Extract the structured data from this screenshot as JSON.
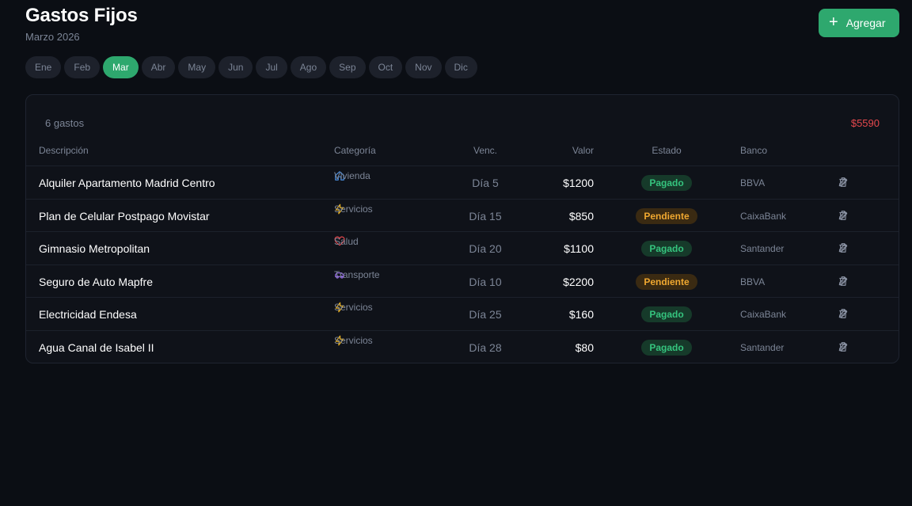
{
  "header": {
    "title": "Gastos Fijos",
    "subtitle": "Marzo 2026",
    "add_label": "Agregar",
    "add_icon": "+"
  },
  "months": [
    {
      "label": "Ene",
      "active": false
    },
    {
      "label": "Feb",
      "active": false
    },
    {
      "label": "Mar",
      "active": true
    },
    {
      "label": "Abr",
      "active": false
    },
    {
      "label": "May",
      "active": false
    },
    {
      "label": "Jun",
      "active": false
    },
    {
      "label": "Jul",
      "active": false
    },
    {
      "label": "Ago",
      "active": false
    },
    {
      "label": "Sep",
      "active": false
    },
    {
      "label": "Oct",
      "active": false
    },
    {
      "label": "Nov",
      "active": false
    },
    {
      "label": "Dic",
      "active": false
    }
  ],
  "summary": {
    "count": "6 gastos",
    "total": "$5590"
  },
  "table": {
    "headers": {
      "descripcion": "Descripción",
      "categoria": "Categoría",
      "venc": "Venc.",
      "valor": "Valor",
      "estado": "Estado",
      "banco": "Banco"
    },
    "rows": [
      {
        "descripcion": "Alquiler Apartamento Madrid Centro",
        "categoria": "Vivienda",
        "cat_icon": "home-icon",
        "cat_color": "#4a8fe0",
        "venc": "Día 5",
        "valor": "$1200",
        "estado": "Pagado",
        "estado_type": "pagado",
        "banco": "BBVA"
      },
      {
        "descripcion": "Plan de Celular Postpago Movistar",
        "categoria": "Servicios",
        "cat_icon": "bolt-icon",
        "cat_color": "#e8b021",
        "venc": "Día 15",
        "valor": "$850",
        "estado": "Pendiente",
        "estado_type": "pendiente",
        "banco": "CaixaBank"
      },
      {
        "descripcion": "Gimnasio Metropolitan",
        "categoria": "Salud",
        "cat_icon": "heart-icon",
        "cat_color": "#e5484d",
        "venc": "Día 20",
        "valor": "$1100",
        "estado": "Pagado",
        "estado_type": "pagado",
        "banco": "Santander"
      },
      {
        "descripcion": "Seguro de Auto Mapfre",
        "categoria": "Transporte",
        "cat_icon": "car-icon",
        "cat_color": "#9b6cf0",
        "venc": "Día 10",
        "valor": "$2200",
        "estado": "Pendiente",
        "estado_type": "pendiente",
        "banco": "BBVA"
      },
      {
        "descripcion": "Electricidad Endesa",
        "categoria": "Servicios",
        "cat_icon": "bolt-icon",
        "cat_color": "#e8b021",
        "venc": "Día 25",
        "valor": "$160",
        "estado": "Pagado",
        "estado_type": "pagado",
        "banco": "CaixaBank"
      },
      {
        "descripcion": "Agua Canal de Isabel II",
        "categoria": "Servicios",
        "cat_icon": "bolt-icon",
        "cat_color": "#e8b021",
        "venc": "Día 28",
        "valor": "$80",
        "estado": "Pagado",
        "estado_type": "pagado",
        "banco": "Santander"
      }
    ]
  },
  "colors": {
    "accent": "#2ea86e",
    "background": "#0b0e14",
    "total": "#e5484d"
  }
}
